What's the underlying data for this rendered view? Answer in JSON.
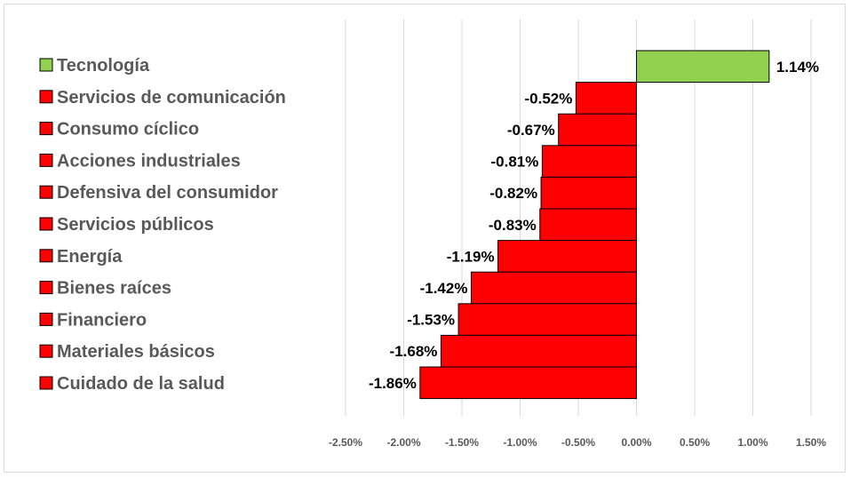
{
  "chart_data": {
    "type": "bar",
    "orientation": "horizontal",
    "categories": [
      "Tecnología",
      "Servicios de comunicación",
      "Consumo cíclico",
      "Acciones industriales",
      "Defensiva del consumidor",
      "Servicios públicos",
      "Energía",
      "Bienes raíces",
      "Financiero",
      "Materiales básicos",
      "Cuidado de la salud"
    ],
    "values": [
      1.14,
      -0.52,
      -0.67,
      -0.81,
      -0.82,
      -0.83,
      -1.19,
      -1.42,
      -1.53,
      -1.68,
      -1.86
    ],
    "data_labels": [
      "1.14%",
      "-0.52%",
      "-0.67%",
      "-0.81%",
      "-0.82%",
      "-0.83%",
      "-1.19%",
      "-1.42%",
      "-1.53%",
      "-1.68%",
      "-1.86%"
    ],
    "xlim": [
      -2.5,
      1.5
    ],
    "x_ticks": [
      -2.5,
      -2.0,
      -1.5,
      -1.0,
      -0.5,
      0.0,
      0.5,
      1.0,
      1.5
    ],
    "x_tick_labels": [
      "-2.50%",
      "-2.00%",
      "-1.50%",
      "-1.00%",
      "-0.50%",
      "0.00%",
      "0.50%",
      "1.00%",
      "1.50%"
    ],
    "title": "",
    "xlabel": "",
    "ylabel": "",
    "grid": "vertical",
    "legend_position": "left",
    "colors": {
      "positive": "#92d050",
      "negative": "#ff0000",
      "bar_border": "#000000",
      "grid": "#d9d9d9",
      "legend_text": "#595959",
      "tick_text": "#595959",
      "label_text": "#000000"
    }
  }
}
